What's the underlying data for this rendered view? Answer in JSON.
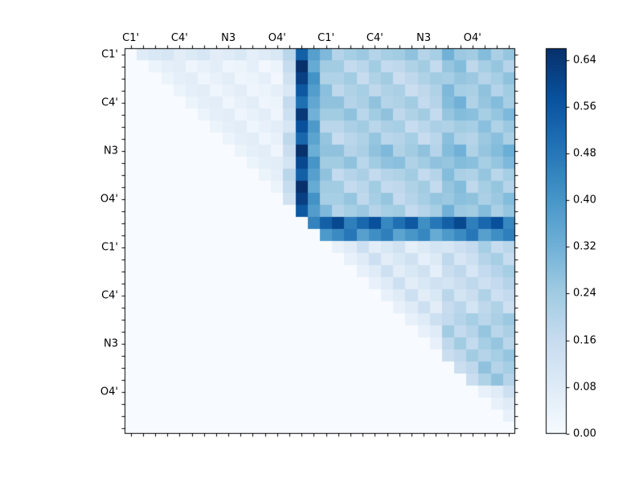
{
  "figure": {
    "background": "#ffffff",
    "axes_border_color": "#000000",
    "tick_color": "#000000",
    "text_color": "#000000"
  },
  "chart_data": {
    "type": "heatmap",
    "title": "",
    "xlabel": "",
    "ylabel": "",
    "n": 32,
    "x_tick_labels": [
      "C1'",
      "C4'",
      "N3",
      "O4'",
      "C1'",
      "C4'",
      "N3",
      "O4'"
    ],
    "y_tick_labels": [
      "C1'",
      "C4'",
      "N3",
      "O4'",
      "C1'",
      "C4'",
      "N3",
      "O4'"
    ],
    "tick_label_positions": [
      0.5,
      4.5,
      8.5,
      12.5,
      16.5,
      20.5,
      24.5,
      28.5
    ],
    "vmin": 0.0,
    "vmax": 0.66,
    "colormap": "Blues",
    "colormap_stops": [
      [
        0.0,
        247,
        251,
        255
      ],
      [
        0.125,
        222,
        235,
        247
      ],
      [
        0.25,
        198,
        219,
        239
      ],
      [
        0.375,
        158,
        202,
        225
      ],
      [
        0.5,
        107,
        174,
        214
      ],
      [
        0.625,
        66,
        146,
        198
      ],
      [
        0.75,
        33,
        113,
        181
      ],
      [
        0.875,
        8,
        81,
        156
      ],
      [
        1.0,
        8,
        48,
        107
      ]
    ],
    "colorbar": {
      "tick_labels": [
        "0.00",
        "0.08",
        "0.16",
        "0.24",
        "0.32",
        "0.40",
        "0.48",
        "0.56",
        "0.64"
      ],
      "tick_values": [
        0.0,
        0.08,
        0.16,
        0.24,
        0.32,
        0.4,
        0.48,
        0.56,
        0.64
      ]
    },
    "matrix": [
      [
        0,
        0.08,
        0.1,
        0.11,
        0.07,
        0.09,
        0.11,
        0.07,
        0.08,
        0.1,
        0.06,
        0.08,
        0.1,
        0.19,
        0.54,
        0.37,
        0.3,
        0.2,
        0.23,
        0.25,
        0.2,
        0.23,
        0.24,
        0.27,
        0.2,
        0.23,
        0.32,
        0.25,
        0.24,
        0.29,
        0.22,
        0.26
      ],
      [
        0,
        0,
        0.04,
        0.06,
        0.07,
        0.03,
        0.05,
        0.07,
        0.03,
        0.04,
        0.06,
        0.02,
        0.04,
        0.16,
        0.66,
        0.34,
        0.24,
        0.24,
        0.17,
        0.19,
        0.24,
        0.17,
        0.18,
        0.21,
        0.24,
        0.17,
        0.26,
        0.29,
        0.18,
        0.23,
        0.26,
        0.2
      ],
      [
        0,
        0,
        0,
        0.04,
        0.06,
        0.07,
        0.03,
        0.05,
        0.07,
        0.03,
        0.04,
        0.06,
        0.02,
        0.13,
        0.62,
        0.41,
        0.21,
        0.21,
        0.24,
        0.16,
        0.21,
        0.24,
        0.15,
        0.18,
        0.21,
        0.24,
        0.23,
        0.26,
        0.25,
        0.2,
        0.23,
        0.27
      ],
      [
        0,
        0,
        0,
        0,
        0.04,
        0.06,
        0.07,
        0.03,
        0.05,
        0.07,
        0.03,
        0.04,
        0.06,
        0.1,
        0.56,
        0.38,
        0.28,
        0.18,
        0.21,
        0.23,
        0.18,
        0.21,
        0.22,
        0.15,
        0.18,
        0.21,
        0.3,
        0.23,
        0.22,
        0.27,
        0.2,
        0.24
      ],
      [
        0,
        0,
        0,
        0,
        0,
        0.04,
        0.06,
        0.07,
        0.03,
        0.05,
        0.07,
        0.03,
        0.04,
        0.17,
        0.5,
        0.35,
        0.27,
        0.27,
        0.2,
        0.22,
        0.27,
        0.2,
        0.21,
        0.24,
        0.17,
        0.2,
        0.29,
        0.32,
        0.21,
        0.26,
        0.29,
        0.23
      ],
      [
        0,
        0,
        0,
        0,
        0,
        0,
        0.04,
        0.06,
        0.07,
        0.03,
        0.05,
        0.07,
        0.03,
        0.14,
        0.64,
        0.32,
        0.24,
        0.24,
        0.27,
        0.19,
        0.24,
        0.27,
        0.18,
        0.21,
        0.24,
        0.17,
        0.26,
        0.29,
        0.28,
        0.23,
        0.26,
        0.3
      ],
      [
        0,
        0,
        0,
        0,
        0,
        0,
        0,
        0.04,
        0.06,
        0.07,
        0.03,
        0.05,
        0.07,
        0.11,
        0.58,
        0.39,
        0.19,
        0.19,
        0.22,
        0.24,
        0.19,
        0.22,
        0.23,
        0.16,
        0.19,
        0.22,
        0.21,
        0.24,
        0.23,
        0.28,
        0.21,
        0.25
      ],
      [
        0,
        0,
        0,
        0,
        0,
        0,
        0,
        0,
        0.04,
        0.06,
        0.07,
        0.03,
        0.05,
        0.18,
        0.52,
        0.36,
        0.26,
        0.16,
        0.19,
        0.21,
        0.26,
        0.19,
        0.2,
        0.23,
        0.16,
        0.19,
        0.28,
        0.21,
        0.2,
        0.25,
        0.28,
        0.22
      ],
      [
        0,
        0,
        0,
        0,
        0,
        0,
        0,
        0,
        0,
        0.04,
        0.06,
        0.07,
        0.03,
        0.15,
        0.66,
        0.33,
        0.27,
        0.27,
        0.2,
        0.22,
        0.27,
        0.3,
        0.21,
        0.24,
        0.27,
        0.2,
        0.29,
        0.32,
        0.21,
        0.26,
        0.29,
        0.33
      ],
      [
        0,
        0,
        0,
        0,
        0,
        0,
        0,
        0,
        0,
        0,
        0.04,
        0.06,
        0.07,
        0.12,
        0.6,
        0.4,
        0.24,
        0.24,
        0.27,
        0.19,
        0.24,
        0.27,
        0.28,
        0.21,
        0.24,
        0.27,
        0.26,
        0.29,
        0.28,
        0.23,
        0.26,
        0.3
      ],
      [
        0,
        0,
        0,
        0,
        0,
        0,
        0,
        0,
        0,
        0,
        0,
        0.04,
        0.06,
        0.19,
        0.54,
        0.37,
        0.27,
        0.17,
        0.2,
        0.22,
        0.17,
        0.2,
        0.21,
        0.24,
        0.17,
        0.2,
        0.29,
        0.22,
        0.21,
        0.26,
        0.19,
        0.23
      ],
      [
        0,
        0,
        0,
        0,
        0,
        0,
        0,
        0,
        0,
        0,
        0,
        0,
        0.04,
        0.16,
        0.66,
        0.34,
        0.24,
        0.24,
        0.17,
        0.19,
        0.24,
        0.17,
        0.18,
        0.21,
        0.24,
        0.17,
        0.26,
        0.29,
        0.18,
        0.23,
        0.26,
        0.2
      ],
      [
        0,
        0,
        0,
        0,
        0,
        0,
        0,
        0,
        0,
        0,
        0,
        0,
        0,
        0.13,
        0.62,
        0.41,
        0.23,
        0.23,
        0.26,
        0.18,
        0.23,
        0.26,
        0.17,
        0.2,
        0.23,
        0.26,
        0.25,
        0.28,
        0.27,
        0.22,
        0.25,
        0.29
      ],
      [
        0,
        0,
        0,
        0,
        0,
        0,
        0,
        0,
        0,
        0,
        0,
        0,
        0,
        0,
        0.56,
        0.38,
        0.3,
        0.2,
        0.23,
        0.25,
        0.2,
        0.23,
        0.24,
        0.17,
        0.2,
        0.23,
        0.32,
        0.25,
        0.24,
        0.29,
        0.22,
        0.26
      ],
      [
        0,
        0,
        0,
        0,
        0,
        0,
        0,
        0,
        0,
        0,
        0,
        0,
        0,
        0,
        0,
        0.45,
        0.54,
        0.6,
        0.46,
        0.52,
        0.58,
        0.44,
        0.5,
        0.56,
        0.42,
        0.48,
        0.54,
        0.6,
        0.46,
        0.52,
        0.58,
        0.44
      ],
      [
        0,
        0,
        0,
        0,
        0,
        0,
        0,
        0,
        0,
        0,
        0,
        0,
        0,
        0,
        0,
        0,
        0.39,
        0.43,
        0.48,
        0.37,
        0.42,
        0.46,
        0.36,
        0.4,
        0.44,
        0.34,
        0.39,
        0.43,
        0.48,
        0.37,
        0.42,
        0.46
      ],
      [
        0,
        0,
        0,
        0,
        0,
        0,
        0,
        0,
        0,
        0,
        0,
        0,
        0,
        0,
        0,
        0,
        0,
        0.05,
        0.08,
        0.14,
        0.07,
        0.1,
        0.13,
        0.06,
        0.09,
        0.12,
        0.11,
        0.14,
        0.17,
        0.23,
        0.16,
        0.19
      ],
      [
        0,
        0,
        0,
        0,
        0,
        0,
        0,
        0,
        0,
        0,
        0,
        0,
        0,
        0,
        0,
        0,
        0,
        0,
        0.05,
        0.08,
        0.14,
        0.07,
        0.1,
        0.13,
        0.06,
        0.09,
        0.18,
        0.11,
        0.14,
        0.2,
        0.23,
        0.16
      ],
      [
        0,
        0,
        0,
        0,
        0,
        0,
        0,
        0,
        0,
        0,
        0,
        0,
        0,
        0,
        0,
        0,
        0,
        0,
        0,
        0.05,
        0.08,
        0.14,
        0.07,
        0.1,
        0.13,
        0.06,
        0.15,
        0.18,
        0.11,
        0.17,
        0.2,
        0.23
      ],
      [
        0,
        0,
        0,
        0,
        0,
        0,
        0,
        0,
        0,
        0,
        0,
        0,
        0,
        0,
        0,
        0,
        0,
        0,
        0,
        0,
        0.05,
        0.08,
        0.14,
        0.07,
        0.1,
        0.13,
        0.12,
        0.15,
        0.18,
        0.14,
        0.17,
        0.2
      ],
      [
        0,
        0,
        0,
        0,
        0,
        0,
        0,
        0,
        0,
        0,
        0,
        0,
        0,
        0,
        0,
        0,
        0,
        0,
        0,
        0,
        0,
        0.05,
        0.08,
        0.14,
        0.07,
        0.1,
        0.19,
        0.12,
        0.15,
        0.21,
        0.14,
        0.17
      ],
      [
        0,
        0,
        0,
        0,
        0,
        0,
        0,
        0,
        0,
        0,
        0,
        0,
        0,
        0,
        0,
        0,
        0,
        0,
        0,
        0,
        0,
        0,
        0.05,
        0.08,
        0.14,
        0.07,
        0.16,
        0.19,
        0.12,
        0.18,
        0.21,
        0.14
      ],
      [
        0,
        0,
        0,
        0,
        0,
        0,
        0,
        0,
        0,
        0,
        0,
        0,
        0,
        0,
        0,
        0,
        0,
        0,
        0,
        0,
        0,
        0,
        0,
        0.05,
        0.08,
        0.14,
        0.17,
        0.2,
        0.23,
        0.19,
        0.22,
        0.25
      ],
      [
        0,
        0,
        0,
        0,
        0,
        0,
        0,
        0,
        0,
        0,
        0,
        0,
        0,
        0,
        0,
        0,
        0,
        0,
        0,
        0,
        0,
        0,
        0,
        0,
        0.05,
        0.08,
        0.24,
        0.17,
        0.2,
        0.26,
        0.19,
        0.22
      ],
      [
        0,
        0,
        0,
        0,
        0,
        0,
        0,
        0,
        0,
        0,
        0,
        0,
        0,
        0,
        0,
        0,
        0,
        0,
        0,
        0,
        0,
        0,
        0,
        0,
        0,
        0.05,
        0.18,
        0.24,
        0.17,
        0.23,
        0.26,
        0.19
      ],
      [
        0,
        0,
        0,
        0,
        0,
        0,
        0,
        0,
        0,
        0,
        0,
        0,
        0,
        0,
        0,
        0,
        0,
        0,
        0,
        0,
        0,
        0,
        0,
        0,
        0,
        0,
        0.15,
        0.18,
        0.24,
        0.2,
        0.23,
        0.26
      ],
      [
        0,
        0,
        0,
        0,
        0,
        0,
        0,
        0,
        0,
        0,
        0,
        0,
        0,
        0,
        0,
        0,
        0,
        0,
        0,
        0,
        0,
        0,
        0,
        0,
        0,
        0,
        0,
        0.15,
        0.18,
        0.27,
        0.2,
        0.23
      ],
      [
        0,
        0,
        0,
        0,
        0,
        0,
        0,
        0,
        0,
        0,
        0,
        0,
        0,
        0,
        0,
        0,
        0,
        0,
        0,
        0,
        0,
        0,
        0,
        0,
        0,
        0,
        0,
        0,
        0.15,
        0.21,
        0.27,
        0.2
      ],
      [
        0,
        0,
        0,
        0,
        0,
        0,
        0,
        0,
        0,
        0,
        0,
        0,
        0,
        0,
        0,
        0,
        0,
        0,
        0,
        0,
        0,
        0,
        0,
        0,
        0,
        0,
        0,
        0,
        0,
        0.05,
        0.08,
        0.14
      ],
      [
        0,
        0,
        0,
        0,
        0,
        0,
        0,
        0,
        0,
        0,
        0,
        0,
        0,
        0,
        0,
        0,
        0,
        0,
        0,
        0,
        0,
        0,
        0,
        0,
        0,
        0,
        0,
        0,
        0,
        0,
        0.05,
        0.08
      ],
      [
        0,
        0,
        0,
        0,
        0,
        0,
        0,
        0,
        0,
        0,
        0,
        0,
        0,
        0,
        0,
        0,
        0,
        0,
        0,
        0,
        0,
        0,
        0,
        0,
        0,
        0,
        0,
        0,
        0,
        0,
        0,
        0.05
      ],
      [
        0,
        0,
        0,
        0,
        0,
        0,
        0,
        0,
        0,
        0,
        0,
        0,
        0,
        0,
        0,
        0,
        0,
        0,
        0,
        0,
        0,
        0,
        0,
        0,
        0,
        0,
        0,
        0,
        0,
        0,
        0,
        0
      ]
    ]
  }
}
